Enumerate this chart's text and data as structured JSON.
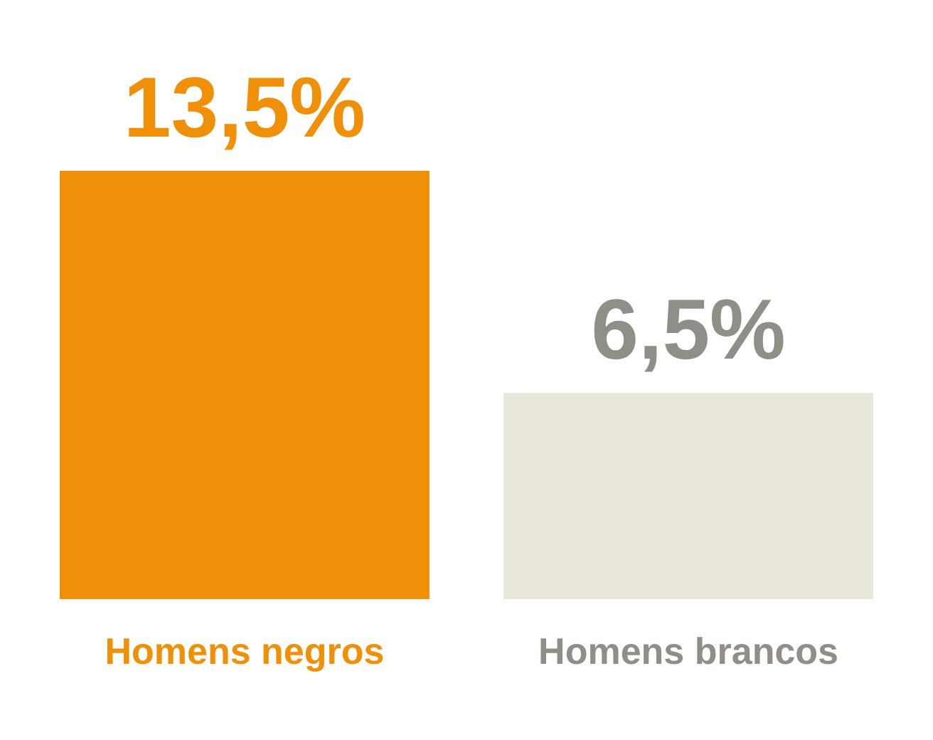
{
  "chart_data": {
    "type": "bar",
    "categories": [
      "Homens negros",
      "Homens brancos"
    ],
    "values": [
      13.5,
      6.5
    ],
    "colors": [
      "#f09008",
      "#e9e6da"
    ],
    "value_labels": [
      "13,5%",
      "6,5%"
    ]
  }
}
